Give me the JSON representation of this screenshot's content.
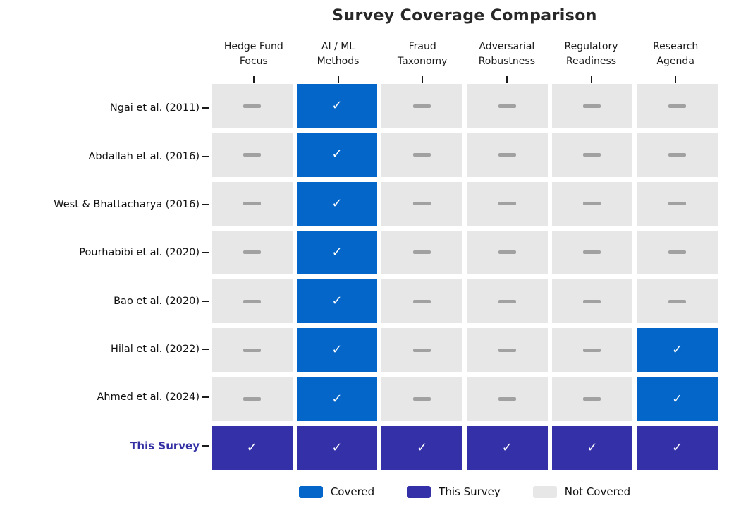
{
  "chart_data": {
    "type": "heatmap",
    "title": "Survey Coverage Comparison",
    "xlabel": "",
    "ylabel": "",
    "grid": "off",
    "legend_position": "bottom center",
    "columns": [
      "Hedge Fund\nFocus",
      "AI / ML\nMethods",
      "Fraud\nTaxonomy",
      "Adversarial\nRobustness",
      "Regulatory\nReadiness",
      "Research\nAgenda"
    ],
    "rows": [
      {
        "label": "Ngai et al. (2011)",
        "emphasis": false,
        "values": [
          0,
          1,
          0,
          0,
          0,
          0
        ]
      },
      {
        "label": "Abdallah et al. (2016)",
        "emphasis": false,
        "values": [
          0,
          1,
          0,
          0,
          0,
          0
        ]
      },
      {
        "label": "West & Bhattacharya (2016)",
        "emphasis": false,
        "values": [
          0,
          1,
          0,
          0,
          0,
          0
        ]
      },
      {
        "label": "Pourhabibi et al. (2020)",
        "emphasis": false,
        "values": [
          0,
          1,
          0,
          0,
          0,
          0
        ]
      },
      {
        "label": "Bao et al. (2020)",
        "emphasis": false,
        "values": [
          0,
          1,
          0,
          0,
          0,
          0
        ]
      },
      {
        "label": "Hilal et al. (2022)",
        "emphasis": false,
        "values": [
          0,
          1,
          0,
          0,
          0,
          1
        ]
      },
      {
        "label": "Ahmed et al. (2024)",
        "emphasis": false,
        "values": [
          0,
          1,
          0,
          0,
          0,
          1
        ]
      },
      {
        "label": "This Survey",
        "emphasis": true,
        "values": [
          2,
          2,
          2,
          2,
          2,
          2
        ]
      }
    ],
    "state_map": {
      "0": "not_covered",
      "1": "covered",
      "2": "this_survey"
    },
    "glyphs": {
      "check": "✓",
      "dash": "—"
    },
    "colors": {
      "covered": "#0366c8",
      "this_survey": "#3431a8",
      "not_covered": "#e7e7e7",
      "dash": "#a1a1a1",
      "check_text": "#ffffff",
      "emphasis_label": "#3330a4",
      "title_text": "#282828",
      "label_text": "#111111",
      "tick": "#1a1a1a"
    },
    "legend": [
      {
        "label": "Covered",
        "state": "covered"
      },
      {
        "label": "This Survey",
        "state": "this_survey"
      },
      {
        "label": "Not Covered",
        "state": "not_covered"
      }
    ]
  }
}
